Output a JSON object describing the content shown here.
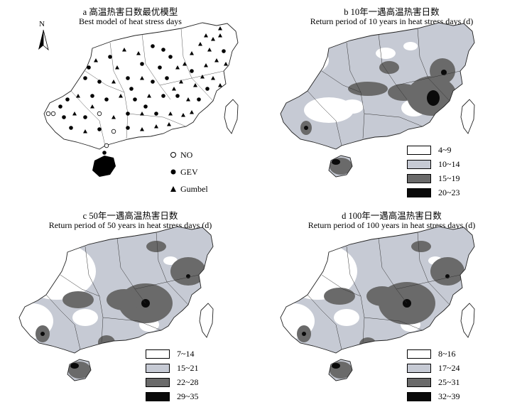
{
  "colors": {
    "class1": "#ffffff",
    "class2": "#c6cad4",
    "class3": "#6a6a6a",
    "class4": "#0a0a0a",
    "outline": "#222222"
  },
  "panels": {
    "a": {
      "title_cn": "a 高温热害日数最优模型",
      "title_en": "Best model of heat stress days",
      "legend": [
        {
          "label": "NO",
          "symbol": "open-circle-icon"
        },
        {
          "label": "GEV",
          "symbol": "filled-circle-icon"
        },
        {
          "label": "Gumbel",
          "symbol": "triangle-icon"
        }
      ],
      "north": "N"
    },
    "b": {
      "title_cn": "b 10年一遇高温热害日数",
      "title_en": "Return period of 10 years in heat stress days (d)",
      "legend": [
        "4~9",
        "10~14",
        "15~19",
        "20~23"
      ]
    },
    "c": {
      "title_cn": "c 50年一遇高温热害日数",
      "title_en": "Return period of 50 years in heat stress days (d)",
      "legend": [
        "7~14",
        "15~21",
        "22~28",
        "29~35"
      ]
    },
    "d": {
      "title_cn": "d 100年一遇高温热害日数",
      "title_en": "Return period of 100 years in heat stress days (d)",
      "legend": [
        "8~16",
        "17~24",
        "25~31",
        "32~39"
      ]
    }
  }
}
